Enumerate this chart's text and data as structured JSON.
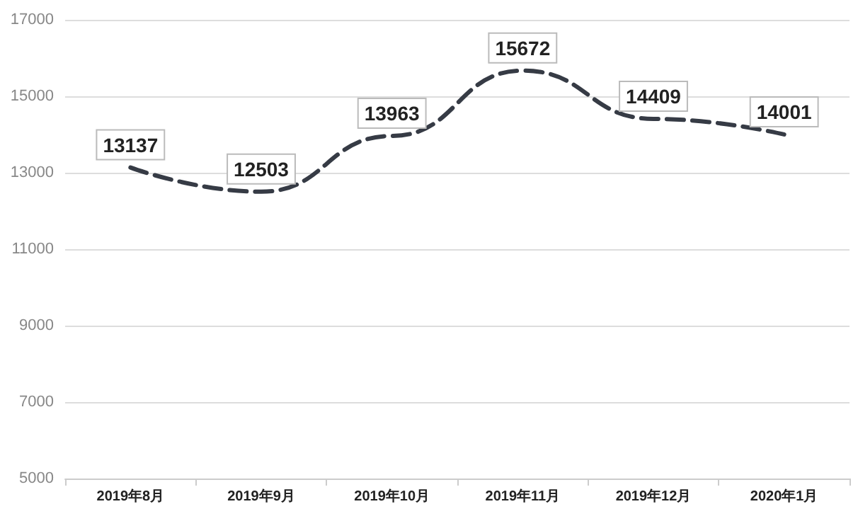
{
  "chart_data": {
    "type": "line",
    "categories": [
      "2019年8月",
      "2019年9月",
      "2019年10月",
      "2019年11月",
      "2019年12月",
      "2020年1月"
    ],
    "series": [
      {
        "color": "#363b45",
        "values": [
          13137,
          12503,
          13963,
          15672,
          14409,
          14001
        ]
      }
    ],
    "ylim": [
      5000,
      17000
    ],
    "yticks": [
      5000,
      7000,
      9000,
      11000,
      13000,
      15000,
      17000
    ],
    "grid": "y",
    "marker": "none",
    "line_style": "dashed",
    "data_labels": true
  }
}
